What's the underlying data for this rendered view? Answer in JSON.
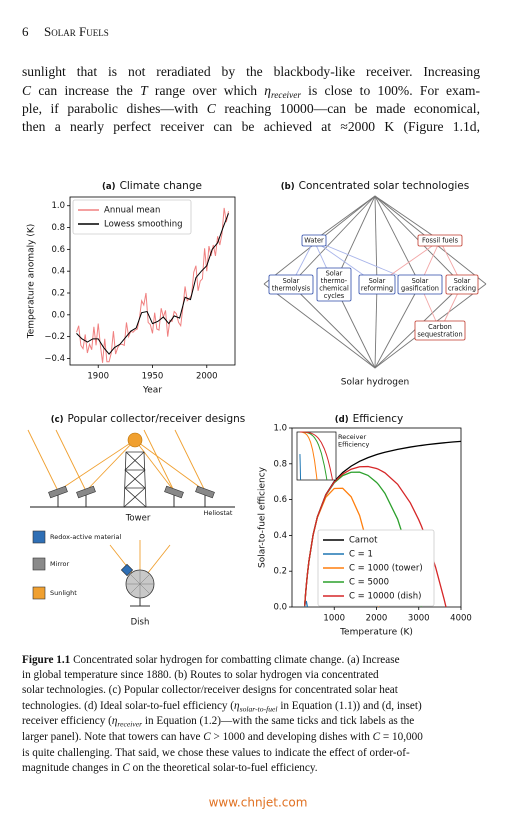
{
  "header": {
    "page_number": "6",
    "running_title": "Solar Fuels"
  },
  "body": {
    "lines": [
      [
        {
          "text": "sunlight that is not reradiated by the blackbody-like receiver. Increasing"
        }
      ],
      [
        {
          "text": "C",
          "style": "italic"
        },
        {
          "text": " can increase the "
        },
        {
          "text": "T",
          "style": "italic"
        },
        {
          "text": " range over which "
        },
        {
          "text": "η",
          "style": "italic"
        },
        {
          "text": "receiver",
          "style": "sub"
        },
        {
          "text": " is close to 100%. For exam-"
        }
      ],
      [
        {
          "text": "ple, if parabolic dishes—with "
        },
        {
          "text": "C",
          "style": "italic"
        },
        {
          "text": " reaching 10000—can be made economical,"
        }
      ],
      [
        {
          "text": "then a nearly perfect receiver can be achieved at ≈2000 K (Figure 1.1d,"
        }
      ]
    ]
  },
  "chart_data": [
    {
      "type": "line",
      "panel_label": "(a)",
      "title": "Climate change",
      "x_label": "Year",
      "y_label": "Temperature anomaly (K)",
      "xlim": [
        1874,
        2026
      ],
      "xticks": [
        1900,
        1950,
        2000
      ],
      "ylim": [
        -0.46,
        1.08
      ],
      "yticks": [
        {
          "value": 1.0,
          "label": "1.0"
        },
        0.8,
        0.6,
        0.4,
        0.2,
        {
          "value": 0,
          "label": "0.0"
        },
        {
          "value": -0.2,
          "label": "−0.2"
        },
        {
          "value": -0.4,
          "label": "−0.4"
        }
      ],
      "legend": "upper left",
      "series": [
        {
          "name": "Annual mean",
          "color": "#f08080",
          "x": [
            1880,
            1882,
            1884,
            1886,
            1888,
            1890,
            1892,
            1894,
            1896,
            1898,
            1900,
            1902,
            1904,
            1906,
            1908,
            1910,
            1912,
            1914,
            1916,
            1918,
            1920,
            1922,
            1924,
            1926,
            1928,
            1930,
            1932,
            1934,
            1936,
            1938,
            1940,
            1942,
            1944,
            1946,
            1948,
            1950,
            1952,
            1954,
            1956,
            1958,
            1960,
            1962,
            1964,
            1966,
            1968,
            1970,
            1972,
            1974,
            1976,
            1978,
            1980,
            1982,
            1984,
            1986,
            1988,
            1990,
            1992,
            1994,
            1996,
            1998,
            2000,
            2002,
            2004,
            2006,
            2008,
            2010,
            2012,
            2014,
            2016,
            2018,
            2020
          ],
          "values": [
            -0.16,
            -0.1,
            -0.28,
            -0.31,
            -0.18,
            -0.35,
            -0.27,
            -0.32,
            -0.11,
            -0.28,
            -0.08,
            -0.28,
            -0.44,
            -0.22,
            -0.43,
            -0.43,
            -0.35,
            -0.15,
            -0.36,
            -0.3,
            -0.27,
            -0.27,
            -0.28,
            -0.07,
            -0.2,
            -0.15,
            -0.16,
            -0.14,
            -0.13,
            -0.03,
            0.13,
            0.09,
            0.2,
            -0.07,
            -0.09,
            -0.17,
            0.02,
            -0.13,
            -0.14,
            0.06,
            -0.02,
            0.04,
            -0.2,
            -0.05,
            -0.06,
            0.03,
            0.01,
            -0.07,
            -0.1,
            0.07,
            0.26,
            0.13,
            0.15,
            0.18,
            0.39,
            0.45,
            0.22,
            0.31,
            0.33,
            0.61,
            0.4,
            0.63,
            0.54,
            0.64,
            0.54,
            0.72,
            0.64,
            0.74,
            0.98,
            0.85,
            0.95
          ]
        },
        {
          "name": "Lowess smoothing",
          "color": "#000000",
          "x": [
            1880,
            1885,
            1890,
            1895,
            1900,
            1905,
            1910,
            1915,
            1920,
            1925,
            1930,
            1935,
            1940,
            1945,
            1950,
            1955,
            1960,
            1965,
            1970,
            1975,
            1980,
            1985,
            1990,
            1995,
            2000,
            2005,
            2010,
            2015,
            2020
          ],
          "values": [
            -0.17,
            -0.22,
            -0.25,
            -0.22,
            -0.22,
            -0.3,
            -0.36,
            -0.3,
            -0.27,
            -0.21,
            -0.15,
            -0.12,
            0.02,
            0.03,
            -0.08,
            -0.06,
            -0.02,
            -0.08,
            -0.01,
            -0.03,
            0.16,
            0.14,
            0.34,
            0.4,
            0.45,
            0.6,
            0.66,
            0.8,
            0.93
          ]
        }
      ]
    },
    {
      "type": "line",
      "panel_label": "(d)",
      "title": "Efficiency",
      "x_label": "Temperature (K)",
      "y_label": "Solar-to-fuel efficiency",
      "xlim": [
        0,
        4000
      ],
      "xticks": [
        1000,
        2000,
        3000,
        4000
      ],
      "ylim": [
        0,
        1.0
      ],
      "yticks": [
        {
          "value": 0,
          "label": "0.0"
        },
        0.2,
        0.4,
        0.6,
        0.8,
        {
          "value": 1.0,
          "label": "1.0"
        }
      ],
      "legend": "lower right",
      "x": [
        300,
        320,
        340,
        364,
        400,
        500,
        600,
        800,
        1000,
        1200,
        1400,
        1600,
        1800,
        2000,
        2049,
        2200,
        2500,
        2800,
        3000,
        3064,
        3200,
        3400,
        3600,
        3644,
        3800,
        4000
      ],
      "series": [
        {
          "name": "Carnot",
          "color": "#000000",
          "values": [
            0.0067,
            0.0688,
            0.1235,
            0.1813,
            0.255,
            0.404,
            0.5033,
            0.6275,
            0.702,
            0.7517,
            0.7871,
            0.8138,
            0.8344,
            0.851,
            0.8546,
            0.8645,
            0.8808,
            0.8936,
            0.9007,
            0.9027,
            0.9069,
            0.9124,
            0.9172,
            0.9182,
            0.9216,
            0.9255
          ]
        },
        {
          "name": "C = 1",
          "color": "#1f77b4",
          "values": [
            0.0036,
            0.0279,
            0.0299,
            0.0008,
            null,
            null,
            null,
            null,
            null,
            null,
            null,
            null,
            null,
            null,
            null,
            null,
            null,
            null,
            null,
            null,
            null,
            null,
            null,
            null,
            null,
            null
          ]
        },
        {
          "name": "C = 1000 (tower)",
          "color": "#ff7f0e",
          "values": [
            0.0067,
            0.0688,
            0.1234,
            0.1811,
            0.2546,
            0.4026,
            0.4996,
            0.6129,
            0.6622,
            0.6633,
            0.6157,
            0.5114,
            0.3378,
            0.079,
            0.0005,
            null,
            null,
            null,
            null,
            null,
            null,
            null,
            null,
            null,
            null,
            null
          ]
        },
        {
          "name": "C = 5000",
          "color": "#2ca02c",
          "values": [
            0.0067,
            0.0688,
            0.1235,
            0.1813,
            0.2549,
            0.4037,
            0.5026,
            0.6246,
            0.694,
            0.734,
            0.7528,
            0.7533,
            0.7351,
            0.6966,
            0.6838,
            0.6349,
            0.4906,
            0.2707,
            0.0734,
            0.0005,
            null,
            null,
            null,
            null,
            null,
            null
          ]
        },
        {
          "name": "C = 10000 (dish)",
          "color": "#d62728",
          "values": [
            0.0067,
            0.0688,
            0.1235,
            0.1813,
            0.255,
            0.4038,
            0.5029,
            0.626,
            0.698,
            0.7429,
            0.7699,
            0.7836,
            0.7847,
            0.7738,
            0.7692,
            0.7497,
            0.6857,
            0.5822,
            0.487,
            0.4516,
            0.3677,
            0.2211,
            0.0437,
            0.0002,
            null,
            null
          ]
        }
      ],
      "inset": {
        "title_lines": [
          "Receiver",
          "Efficiency"
        ],
        "xlim": [
          0,
          4000
        ],
        "ylim": [
          0,
          1
        ],
        "series": [
          {
            "color": "#1f77b4",
            "values": [
              0.5407,
              0.4055,
              0.2423,
              0.0046,
              null,
              null,
              null,
              null,
              null,
              null,
              null,
              null,
              null,
              null,
              null,
              null,
              null,
              null,
              null,
              null,
              null,
              null,
              null,
              null,
              null,
              null
            ]
          },
          {
            "color": "#ff7f0e",
            "values": [
              0.9995,
              0.9994,
              0.9992,
              0.999,
              0.9985,
              0.9965,
              0.9927,
              0.9768,
              0.9433,
              0.8824,
              0.7822,
              0.6284,
              0.4048,
              0.0928,
              0.0006,
              null,
              null,
              null,
              null,
              null,
              null,
              null,
              null,
              null,
              null,
              null
            ]
          },
          {
            "color": "#2ca02c",
            "values": [
              0.9999,
              0.9999,
              0.9998,
              0.9998,
              0.9997,
              0.9993,
              0.9985,
              0.9954,
              0.9887,
              0.9765,
              0.9564,
              0.9257,
              0.881,
              0.8186,
              0.8001,
              0.7344,
              0.557,
              0.303,
              0.0815,
              0.0005,
              null,
              null,
              null,
              null,
              null,
              null
            ]
          },
          {
            "color": "#d62728",
            "values": [
              1.0,
              0.9999,
              0.9999,
              0.9999,
              0.9999,
              0.9996,
              0.9993,
              0.9977,
              0.9943,
              0.9882,
              0.9782,
              0.9628,
              0.9405,
              0.9093,
              0.9001,
              0.8672,
              0.7785,
              0.6515,
              0.5407,
              0.5003,
              0.4055,
              0.2423,
              0.0477,
              0.0002,
              null,
              null
            ]
          }
        ]
      }
    }
  ],
  "diagram_b": {
    "panel_label": "(b)",
    "title": "Concentrated solar technologies",
    "nodes": [
      {
        "lines": [
          "Water"
        ]
      },
      {
        "lines": [
          "Fossil fuels"
        ]
      },
      {
        "lines": [
          "Solar",
          "thermolysis"
        ]
      },
      {
        "lines": [
          "Solar",
          "thermo-",
          "chemical",
          "cycles"
        ]
      },
      {
        "lines": [
          "Solar",
          "reforming"
        ]
      },
      {
        "lines": [
          "Solar",
          "gasification"
        ]
      },
      {
        "lines": [
          "Solar",
          "cracking"
        ]
      },
      {
        "lines": [
          "Carbon",
          "sequestration"
        ]
      }
    ],
    "output": "Solar hydrogen"
  },
  "diagram_c": {
    "panel_label": "(c)",
    "title": "Popular collector/receiver designs",
    "tower": "Tower",
    "heliostat": "Heliostat",
    "dish": "Dish",
    "legend": [
      "Redox-active material",
      "Mirror",
      "Sunlight"
    ]
  },
  "caption": {
    "lines": [
      [
        {
          "text": "Figure 1.1",
          "style": "bold"
        },
        {
          "text": "  Concentrated solar hydrogen for combatting climate change. (a) Increase"
        }
      ],
      [
        {
          "text": "in global temperature since 1880. (b) Routes to solar hydrogen via concentrated"
        }
      ],
      [
        {
          "text": "solar technologies. (c) Popular collector/receiver designs for concentrated solar heat"
        }
      ],
      [
        {
          "text": "technologies. (d) Ideal solar-to-fuel efficiency ("
        },
        {
          "text": "η",
          "style": "italic"
        },
        {
          "text": "solar-to-fuel",
          "style": "sub"
        },
        {
          "text": " in Equation (1.1)) and (d, inset)"
        }
      ],
      [
        {
          "text": "receiver efficiency ("
        },
        {
          "text": "η",
          "style": "italic"
        },
        {
          "text": "receiver",
          "style": "sub"
        },
        {
          "text": " in Equation (1.2)—with the same ticks and tick labels as the"
        }
      ],
      [
        {
          "text": "larger panel). Note that towers can have "
        },
        {
          "text": "C",
          "style": "italic"
        },
        {
          "text": " > 1000 and developing dishes with "
        },
        {
          "text": "C",
          "style": "italic"
        },
        {
          "text": " = 10,000"
        }
      ],
      [
        {
          "text": "is quite challenging. That said, we chose these values to indicate the effect of order-of-"
        }
      ],
      [
        {
          "text": "magnitude changes in "
        },
        {
          "text": "C",
          "style": "italic"
        },
        {
          "text": " on the theoretical solar-to-fuel efficiency."
        }
      ]
    ]
  },
  "watermark": "www.chnjet.com"
}
